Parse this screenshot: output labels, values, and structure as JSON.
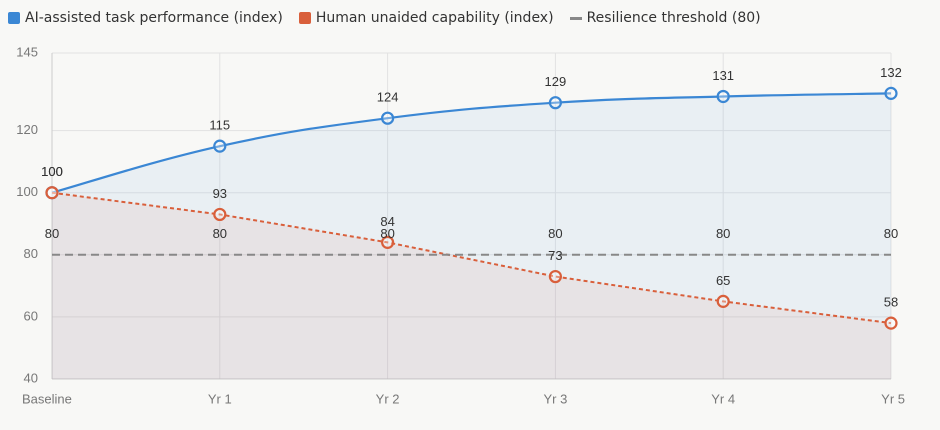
{
  "chart_data": {
    "type": "line",
    "categories": [
      "Baseline",
      "Yr 1",
      "Yr 2",
      "Yr 3",
      "Yr 4",
      "Yr 5"
    ],
    "series": [
      {
        "name": "AI-assisted task performance (index)",
        "color": "#3b87d4",
        "values": [
          100,
          115,
          124,
          129,
          131,
          132
        ],
        "line_style": "solid",
        "fill": true,
        "points": true
      },
      {
        "name": "Human unaided capability (index)",
        "color": "#d95f3b",
        "values": [
          100,
          93,
          84,
          73,
          65,
          58
        ],
        "line_style": "dotted",
        "fill": true,
        "points": true
      },
      {
        "name": "Resilience threshold (80)",
        "color": "#888888",
        "values": [
          80,
          80,
          80,
          80,
          80,
          80
        ],
        "line_style": "dashed",
        "fill": false,
        "points": false
      }
    ],
    "ylim": [
      40,
      145
    ],
    "yticks": [
      40,
      60,
      80,
      100,
      120,
      145
    ],
    "grid": true,
    "data_labels": true,
    "legend": "top-left"
  }
}
